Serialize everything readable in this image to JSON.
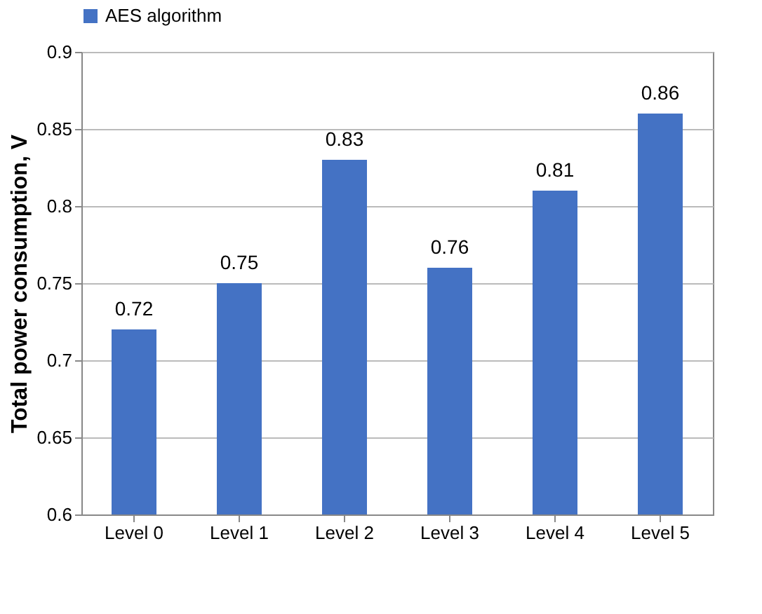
{
  "chart_data": {
    "type": "bar",
    "ylabel": "Total power consumption, V",
    "categories": [
      "Level 0",
      "Level 1",
      "Level 2",
      "Level 3",
      "Level 4",
      "Level 5"
    ],
    "series": [
      {
        "name": "AES algorithm",
        "color": "#4472c4",
        "values": [
          0.72,
          0.75,
          0.83,
          0.76,
          0.81,
          0.86
        ]
      }
    ],
    "ylim": [
      0.6,
      0.9
    ],
    "yticks": [
      0.6,
      0.65,
      0.7,
      0.75,
      0.8,
      0.85,
      0.9
    ],
    "grid": "y",
    "legend": "top",
    "data_labels": true
  }
}
